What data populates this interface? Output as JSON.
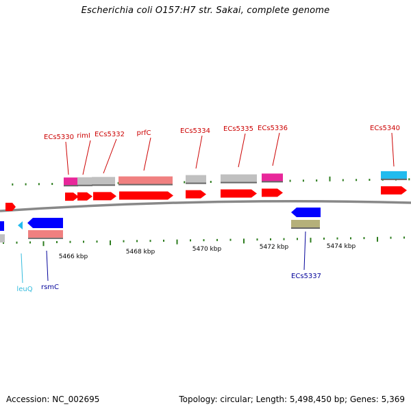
{
  "title": "Escherichia coli O157:H7 str. Sakai, complete genome",
  "footer": {
    "accession": "Accession: NC_002695",
    "summary": "Topology: circular; Length: 5,498,450 bp; Genes: 5,369"
  },
  "colors": {
    "backbone": "#888888",
    "tick": "#2e7d1f",
    "cds_red": "#ff0000",
    "cds_blue": "#0000ff",
    "gene_label_red": "#cc0000",
    "gene_label_blue": "#000099",
    "gene_label_cyan": "#33bbdd"
  },
  "scale": {
    "labels": [
      "5466 kbp",
      "5468 kbp",
      "5470 kbp",
      "5472 kbp",
      "5474 kbp"
    ]
  },
  "features": [
    {
      "label": "ECs5330",
      "strand": "top",
      "gene_color": "#e8279a",
      "cds_color": "#ff0000",
      "label_color": "#cc0000"
    },
    {
      "label": "rimI",
      "strand": "top",
      "gene_color": "#c0c0c0",
      "cds_color": "#ff0000",
      "label_color": "#cc0000"
    },
    {
      "label": "ECs5332",
      "strand": "top",
      "gene_color": "#c0c0c0",
      "cds_color": "#ff0000",
      "label_color": "#cc0000"
    },
    {
      "label": "prfC",
      "strand": "top",
      "gene_color": "#f08080",
      "cds_color": "#ff0000",
      "label_color": "#cc0000"
    },
    {
      "label": "ECs5334",
      "strand": "top",
      "gene_color": "#c0c0c0",
      "cds_color": "#ff0000",
      "label_color": "#cc0000"
    },
    {
      "label": "ECs5335",
      "strand": "top",
      "gene_color": "#c0c0c0",
      "cds_color": "#ff0000",
      "label_color": "#cc0000"
    },
    {
      "label": "ECs5336",
      "strand": "top",
      "gene_color": "#e8279a",
      "cds_color": "#ff0000",
      "label_color": "#cc0000"
    },
    {
      "label": "ECs5340",
      "strand": "top",
      "gene_color": "#22bbee",
      "cds_color": "#ff0000",
      "label_color": "#cc0000"
    },
    {
      "label": "leuQ",
      "strand": "bottom",
      "gene_color": "#22bbee",
      "cds_color": "",
      "label_color": "#33bbdd"
    },
    {
      "label": "rsmC",
      "strand": "bottom",
      "gene_color": "#f08080",
      "cds_color": "#0000ff",
      "label_color": "#000099"
    },
    {
      "label": "ECs5337",
      "strand": "bottom",
      "gene_color": "#b5b07a",
      "cds_color": "#0000ff",
      "label_color": "#000099"
    }
  ]
}
